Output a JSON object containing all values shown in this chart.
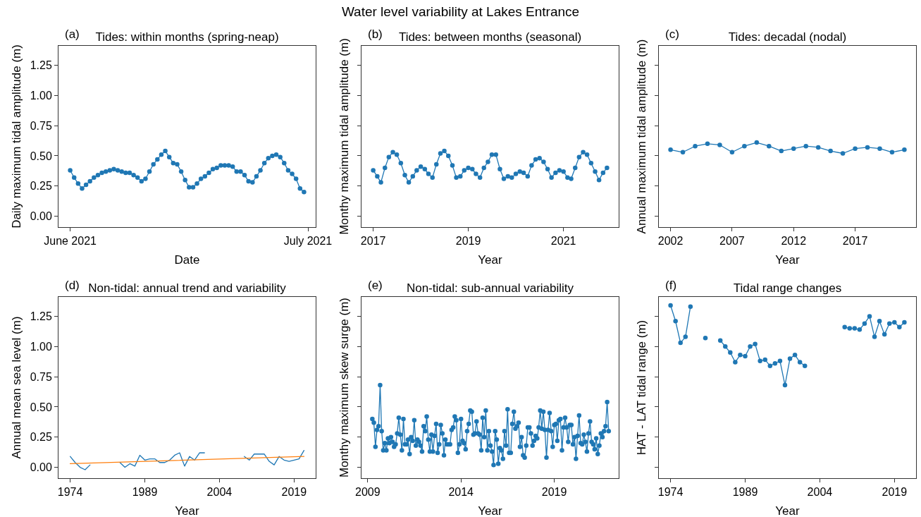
{
  "chart_data": [
    {
      "type": "line",
      "title": "Tides: within months (spring-neap)",
      "annotations": [
        "(a)",
        "Water level variability at Lakes Entrance"
      ],
      "xlabel": "Date",
      "ylabel": "Daily maximum tidal amplitude (m)",
      "marker": "circle",
      "x": [
        "2021-06-01T00:00",
        "2021-06-01T12:00",
        "2021-06-02T00:00",
        "2021-06-02T12:00",
        "2021-06-03T00:00",
        "2021-06-03T12:00",
        "2021-06-04T00:00",
        "2021-06-04T12:00",
        "2021-06-05T00:00",
        "2021-06-05T12:00",
        "2021-06-06T00:00",
        "2021-06-06T12:00",
        "2021-06-07T00:00",
        "2021-06-07T12:00",
        "2021-06-08T00:00",
        "2021-06-08T12:00",
        "2021-06-09T00:00",
        "2021-06-09T12:00",
        "2021-06-10T00:00",
        "2021-06-10T12:00",
        "2021-06-11T00:00",
        "2021-06-11T12:00",
        "2021-06-12T00:00",
        "2021-06-12T12:00",
        "2021-06-13T00:00",
        "2021-06-13T12:00",
        "2021-06-14T00:00",
        "2021-06-14T12:00",
        "2021-06-15T00:00",
        "2021-06-15T12:00",
        "2021-06-16T00:00",
        "2021-06-16T12:00",
        "2021-06-17T00:00",
        "2021-06-17T12:00",
        "2021-06-18T00:00",
        "2021-06-18T12:00",
        "2021-06-19T00:00",
        "2021-06-19T12:00",
        "2021-06-20T00:00",
        "2021-06-20T12:00",
        "2021-06-21T00:00",
        "2021-06-21T12:00",
        "2021-06-22T00:00",
        "2021-06-22T12:00",
        "2021-06-23T00:00",
        "2021-06-23T12:00",
        "2021-06-24T00:00",
        "2021-06-24T12:00",
        "2021-06-25T00:00",
        "2021-06-25T12:00",
        "2021-06-26T00:00",
        "2021-06-26T12:00",
        "2021-06-27T00:00",
        "2021-06-27T12:00",
        "2021-06-28T00:00",
        "2021-06-28T12:00",
        "2021-06-29T00:00",
        "2021-06-29T12:00",
        "2021-06-30T00:00",
        "2021-06-30T12:00"
      ],
      "series": [
        {
          "color": "#1f77b4",
          "values": [
            0.38,
            0.32,
            0.27,
            0.23,
            0.26,
            0.29,
            0.32,
            0.34,
            0.36,
            0.37,
            0.38,
            0.39,
            0.38,
            0.37,
            0.36,
            0.36,
            0.34,
            0.32,
            0.29,
            0.31,
            0.37,
            0.43,
            0.47,
            0.51,
            0.54,
            0.49,
            0.44,
            0.43,
            0.37,
            0.3,
            0.24,
            0.24,
            0.27,
            0.31,
            0.33,
            0.36,
            0.39,
            0.4,
            0.42,
            0.42,
            0.42,
            0.41,
            0.37,
            0.37,
            0.34,
            0.29,
            0.28,
            0.33,
            0.38,
            0.44,
            0.48,
            0.5,
            0.51,
            0.49,
            0.44,
            0.38,
            0.35,
            0.31,
            0.23,
            0.2
          ]
        }
      ],
      "xlim": [
        "2021-05-30T12:36",
        "2021-07-01T23:24"
      ],
      "xticks": [
        {
          "value": "2021-06-01",
          "label": "June 2021"
        },
        {
          "value": "2021-07-01",
          "label": "July 2021"
        }
      ],
      "ylim": [
        -0.09,
        1.41
      ],
      "yticks": [
        {
          "value": 0,
          "label": "0.00"
        },
        {
          "value": 0.25,
          "label": "0.25"
        },
        {
          "value": 0.5,
          "label": "0.50"
        },
        {
          "value": 0.75,
          "label": "0.75"
        },
        {
          "value": 1,
          "label": "1.00"
        },
        {
          "value": 1.25,
          "label": "1.25"
        }
      ]
    },
    {
      "type": "line",
      "title": "Tides: between months (seasonal)",
      "annotations": [
        "(b)"
      ],
      "xlabel": "Year",
      "ylabel": "Monthy maximum tidal amplitude (m)",
      "marker": "circle",
      "tick_labels": "x",
      "x": [
        "2017-01",
        "2017-02",
        "2017-03",
        "2017-04",
        "2017-05",
        "2017-06",
        "2017-07",
        "2017-08",
        "2017-09",
        "2017-10",
        "2017-11",
        "2017-12",
        "2018-01",
        "2018-02",
        "2018-03",
        "2018-04",
        "2018-05",
        "2018-06",
        "2018-07",
        "2018-08",
        "2018-09",
        "2018-10",
        "2018-11",
        "2018-12",
        "2019-01",
        "2019-02",
        "2019-03",
        "2019-04",
        "2019-05",
        "2019-06",
        "2019-07",
        "2019-08",
        "2019-09",
        "2019-10",
        "2019-11",
        "2019-12",
        "2020-01",
        "2020-02",
        "2020-03",
        "2020-04",
        "2020-05",
        "2020-06",
        "2020-07",
        "2020-08",
        "2020-09",
        "2020-10",
        "2020-11",
        "2020-12",
        "2021-01",
        "2021-02",
        "2021-03",
        "2021-04",
        "2021-05",
        "2021-06",
        "2021-07",
        "2021-08",
        "2021-09",
        "2021-10",
        "2021-11",
        "2021-12"
      ],
      "series": [
        {
          "color": "#1f77b4",
          "values": [
            0.38,
            0.33,
            0.28,
            0.4,
            0.49,
            0.53,
            0.51,
            0.44,
            0.34,
            0.28,
            0.33,
            0.38,
            0.41,
            0.39,
            0.35,
            0.32,
            0.43,
            0.52,
            0.54,
            0.5,
            0.42,
            0.32,
            0.33,
            0.38,
            0.4,
            0.39,
            0.35,
            0.32,
            0.4,
            0.45,
            0.51,
            0.51,
            0.39,
            0.31,
            0.33,
            0.32,
            0.35,
            0.37,
            0.36,
            0.33,
            0.42,
            0.47,
            0.48,
            0.45,
            0.39,
            0.32,
            0.36,
            0.38,
            0.37,
            0.32,
            0.31,
            0.4,
            0.49,
            0.53,
            0.51,
            0.44,
            0.37,
            0.3,
            0.36,
            0.4
          ]
        }
      ],
      "xlim": [
        "2016-10-03",
        "2022-03-01"
      ],
      "xticks": [
        "2017",
        "2019",
        "2021"
      ],
      "ylim": [
        -0.09,
        1.41
      ],
      "yticks": [
        {
          "value": 0,
          "label": null
        },
        {
          "value": 0.25,
          "label": null
        },
        {
          "value": 0.5,
          "label": null
        },
        {
          "value": 0.75,
          "label": null
        },
        {
          "value": 1,
          "label": null
        },
        {
          "value": 1.25,
          "label": null
        }
      ]
    },
    {
      "type": "line",
      "title": "Tides: decadal (nodal)",
      "annotations": [
        "(c)"
      ],
      "xlabel": "Year",
      "ylabel": "Annual maximum tidal amplitude (m)",
      "marker": "circle",
      "tick_labels": "x",
      "x": [
        2002,
        2003,
        2004,
        2005,
        2006,
        2007,
        2008,
        2009,
        2010,
        2011,
        2012,
        2013,
        2014,
        2015,
        2016,
        2017,
        2018,
        2019,
        2020,
        2021
      ],
      "series": [
        {
          "color": "#1f77b4",
          "values": [
            0.55,
            0.53,
            0.58,
            0.6,
            0.59,
            0.53,
            0.58,
            0.61,
            0.58,
            0.54,
            0.56,
            0.58,
            0.57,
            0.54,
            0.52,
            0.56,
            0.57,
            0.56,
            0.53,
            0.55
          ]
        }
      ],
      "xlim": [
        2001.05,
        2021.95
      ],
      "xticks": [
        2002,
        2007,
        2012,
        2017
      ],
      "ylim": [
        -0.09,
        1.41
      ],
      "yticks": [
        {
          "value": 0,
          "label": null
        },
        {
          "value": 0.25,
          "label": null
        },
        {
          "value": 0.5,
          "label": null
        },
        {
          "value": 0.75,
          "label": null
        },
        {
          "value": 1,
          "label": null
        },
        {
          "value": 1.25,
          "label": null
        }
      ]
    },
    {
      "type": "line",
      "title": "Non-tidal: annual trend and variability",
      "annotations": [
        "(d)"
      ],
      "xlabel": "Year",
      "ylabel": "Annual mean sea level (m)",
      "marker": "none",
      "x": [
        1974,
        1975,
        1976,
        1977,
        1978,
        1979,
        1980,
        1981,
        1982,
        1983,
        1984,
        1985,
        1986,
        1987,
        1988,
        1989,
        1990,
        1991,
        1992,
        1993,
        1994,
        1995,
        1996,
        1997,
        1998,
        1999,
        2000,
        2001,
        2002,
        2003,
        2004,
        2005,
        2006,
        2007,
        2008,
        2009,
        2010,
        2011,
        2012,
        2013,
        2014,
        2015,
        2016,
        2017,
        2018,
        2019,
        2020,
        2021
      ],
      "series": [
        {
          "color": "#1f77b4",
          "values": [
            0.09,
            0.04,
            0.0,
            -0.02,
            0.02,
            null,
            null,
            null,
            null,
            null,
            0.04,
            0.0,
            0.03,
            0.01,
            0.1,
            0.06,
            0.07,
            0.07,
            0.04,
            0.04,
            0.06,
            0.1,
            0.12,
            0.01,
            0.09,
            0.06,
            0.12,
            0.12,
            null,
            null,
            null,
            null,
            null,
            null,
            null,
            0.09,
            0.06,
            0.11,
            0.11,
            0.11,
            0.05,
            0.02,
            0.09,
            0.06,
            0.05,
            0.06,
            0.07,
            0.14
          ]
        },
        {
          "type": "line",
          "color": "#ff7f0e",
          "x": [
            1974,
            2021
          ],
          "values": [
            0.03,
            0.09
          ]
        }
      ],
      "xlim": [
        1971.65,
        2023.35
      ],
      "xticks": [
        1974,
        1989,
        2004,
        2019
      ],
      "ylim": [
        -0.09,
        1.41
      ],
      "yticks": [
        {
          "value": 0,
          "label": "0.00"
        },
        {
          "value": 0.25,
          "label": "0.25"
        },
        {
          "value": 0.5,
          "label": "0.50"
        },
        {
          "value": 0.75,
          "label": "0.75"
        },
        {
          "value": 1,
          "label": "1.00"
        },
        {
          "value": 1.25,
          "label": "1.25"
        }
      ]
    },
    {
      "type": "line",
      "title": "Non-tidal: sub-annual variability",
      "annotations": [
        "(e)"
      ],
      "xlabel": "Year",
      "ylabel": "Monthy maximum skew surge (m)",
      "marker": "circle",
      "tick_labels": "x",
      "x": [
        "2009-04",
        "2009-05",
        "2009-06",
        "2009-07",
        "2009-08",
        "2009-09",
        "2009-10",
        "2009-11",
        "2009-12",
        "2010-01",
        "2010-02",
        "2010-03",
        "2010-04",
        "2010-05",
        "2010-06",
        "2010-07",
        "2010-08",
        "2010-09",
        "2010-10",
        "2010-11",
        "2010-12",
        "2011-01",
        "2011-02",
        "2011-03",
        "2011-04",
        "2011-05",
        "2011-06",
        "2011-07",
        "2011-08",
        "2011-09",
        "2011-10",
        "2011-11",
        "2011-12",
        "2012-01",
        "2012-02",
        "2012-03",
        "2012-04",
        "2012-05",
        "2012-06",
        "2012-07",
        "2012-08",
        "2012-09",
        "2012-10",
        "2012-11",
        "2012-12",
        "2013-01",
        "2013-02",
        "2013-03",
        "2013-04",
        "2013-05",
        "2013-06",
        "2013-07",
        "2013-08",
        "2013-09",
        "2013-10",
        "2013-11",
        "2013-12",
        "2014-01",
        "2014-02",
        "2014-03",
        "2014-04",
        "2014-05",
        "2014-06",
        "2014-07",
        "2014-08",
        "2014-09",
        "2014-10",
        "2014-11",
        "2014-12",
        "2015-01",
        "2015-02",
        "2015-03",
        "2015-04",
        "2015-05",
        "2015-06",
        "2015-07",
        "2015-08",
        "2015-09",
        "2015-10",
        "2015-11",
        "2015-12",
        "2016-01",
        "2016-02",
        "2016-03",
        "2016-04",
        "2016-05",
        "2016-06",
        "2016-07",
        "2016-08",
        "2016-09",
        "2016-10",
        "2016-11",
        "2016-12",
        "2017-01",
        "2017-02",
        "2017-03",
        "2017-04",
        "2017-05",
        "2017-06",
        "2017-07",
        "2017-08",
        "2017-09",
        "2017-10",
        "2017-11",
        "2017-12",
        "2018-01",
        "2018-02",
        "2018-03",
        "2018-04",
        "2018-05",
        "2018-06",
        "2018-07",
        "2018-08",
        "2018-09",
        "2018-10",
        "2018-11",
        "2018-12",
        "2019-01",
        "2019-02",
        "2019-03",
        "2019-04",
        "2019-05",
        "2019-06",
        "2019-07",
        "2019-08",
        "2019-09",
        "2019-10",
        "2019-11",
        "2019-12",
        "2020-01",
        "2020-02",
        "2020-03",
        "2020-04",
        "2020-05",
        "2020-06",
        "2020-07",
        "2020-08",
        "2020-09",
        "2020-10",
        "2020-11",
        "2020-12",
        "2021-01",
        "2021-02",
        "2021-03",
        "2021-04",
        "2021-05",
        "2021-06",
        "2021-07",
        "2021-08",
        "2021-09",
        "2021-10",
        "2021-11",
        "2021-12"
      ],
      "series": [
        {
          "color": "#1f77b4",
          "values": [
            0.4,
            0.37,
            0.17,
            0.31,
            0.34,
            0.68,
            0.3,
            0.14,
            0.2,
            0.14,
            0.24,
            0.2,
            0.25,
            0.21,
            0.17,
            0.19,
            0.28,
            0.41,
            0.27,
            0.14,
            0.4,
            0.19,
            0.19,
            0.23,
            0.11,
            0.25,
            0.22,
            0.39,
            0.18,
            0.23,
            0.21,
            0.18,
            0.13,
            0.34,
            0.3,
            0.42,
            0.23,
            0.13,
            0.27,
            0.13,
            0.26,
            0.36,
            0.12,
            0.19,
            0.35,
            0.28,
            0.1,
            0.23,
            0.19,
            0.19,
            0.19,
            0.31,
            0.33,
            0.42,
            0.39,
            0.12,
            0.19,
            0.4,
            0.22,
            0.2,
            0.15,
            0.3,
            0.36,
            0.47,
            0.46,
            0.27,
            0.28,
            0.38,
            0.28,
            0.27,
            0.14,
            0.41,
            0.25,
            0.47,
            0.14,
            0.3,
            0.18,
            0.13,
            0.02,
            0.3,
            0.23,
            0.03,
            0.16,
            0.14,
            0.07,
            0.3,
            0.18,
            0.48,
            0.12,
            0.12,
            0.36,
            0.46,
            0.32,
            0.34,
            0.37,
            0.17,
            0.25,
            0.1,
            0.08,
            0.18,
            0.33,
            0.33,
            0.28,
            0.18,
            0.22,
            0.26,
            0.24,
            0.33,
            0.47,
            0.32,
            0.46,
            0.31,
            0.08,
            0.31,
            0.45,
            0.3,
            0.17,
            0.35,
            0.36,
            0.22,
            0.39,
            0.4,
            0.14,
            0.33,
            0.41,
            0.33,
            0.21,
            0.35,
            0.35,
            0.19,
            0.25,
            0.07,
            0.26,
            0.43,
            0.2,
            0.19,
            0.27,
            0.21,
            0.13,
            0.28,
            0.38,
            0.21,
            0.19,
            0.15,
            0.24,
            0.11,
            0.18,
            0.28,
            0.25,
            0.3,
            0.34,
            0.54,
            0.3
          ]
        }
      ],
      "xlim": [
        "2008-09-01",
        "2022-06-15"
      ],
      "xticks": [
        "2009",
        "2014",
        "2019"
      ],
      "ylim": [
        -0.09,
        1.41
      ],
      "yticks": [
        {
          "value": 0,
          "label": null
        },
        {
          "value": 0.25,
          "label": null
        },
        {
          "value": 0.5,
          "label": null
        },
        {
          "value": 0.75,
          "label": null
        },
        {
          "value": 1,
          "label": null
        },
        {
          "value": 1.25,
          "label": null
        }
      ]
    },
    {
      "type": "line",
      "title": "Tidal range changes",
      "annotations": [
        "(f)"
      ],
      "xlabel": "Year",
      "ylabel": "HAT - LAT tidal range (m)",
      "marker": "circle",
      "tick_labels": "x",
      "x": [
        1974,
        1975,
        1976,
        1977,
        1978,
        1979,
        1980,
        1981,
        1982,
        1983,
        1984,
        1985,
        1986,
        1987,
        1988,
        1989,
        1990,
        1991,
        1992,
        1993,
        1994,
        1995,
        1996,
        1997,
        1998,
        1999,
        2000,
        2001,
        2002,
        2003,
        2004,
        2005,
        2006,
        2007,
        2008,
        2009,
        2010,
        2011,
        2012,
        2013,
        2014,
        2015,
        2016,
        2017,
        2018,
        2019,
        2020,
        2021
      ],
      "series": [
        {
          "color": "#1f77b4",
          "values": [
            1.34,
            1.21,
            1.03,
            1.08,
            1.33,
            null,
            null,
            1.07,
            null,
            null,
            1.05,
            1.0,
            0.95,
            0.87,
            0.93,
            0.92,
            1.0,
            1.02,
            0.88,
            0.89,
            0.84,
            0.86,
            0.88,
            0.68,
            0.9,
            0.93,
            0.87,
            0.84,
            null,
            null,
            null,
            null,
            null,
            null,
            null,
            1.16,
            1.15,
            1.15,
            1.14,
            1.19,
            1.25,
            1.08,
            1.21,
            1.1,
            1.19,
            1.2,
            1.16,
            1.2
          ]
        }
      ],
      "xlim": [
        1971.65,
        2023.35
      ],
      "xticks": [
        1974,
        1989,
        2004,
        2019
      ],
      "ylim": [
        -0.09,
        1.41
      ],
      "yticks": [
        {
          "value": 0,
          "label": null
        },
        {
          "value": 0.25,
          "label": null
        },
        {
          "value": 0.5,
          "label": null
        },
        {
          "value": 0.75,
          "label": null
        },
        {
          "value": 1,
          "label": null
        },
        {
          "value": 1.25,
          "label": null
        }
      ]
    }
  ]
}
